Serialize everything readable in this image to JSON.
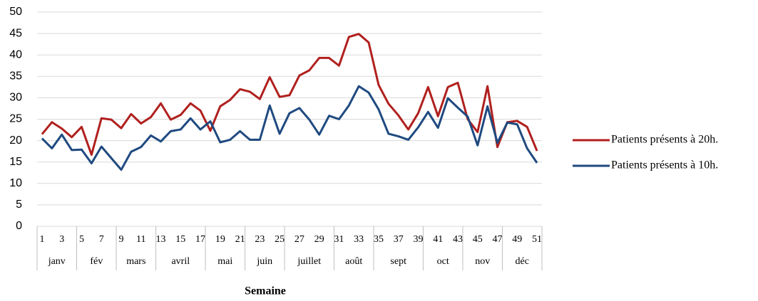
{
  "chart_data": {
    "type": "line",
    "categories": [
      "1",
      null,
      "3",
      null,
      "5",
      null,
      "7",
      null,
      "9",
      null,
      "11",
      null,
      "13",
      null,
      "15",
      null,
      "17",
      null,
      "19",
      null,
      "21",
      null,
      "23",
      null,
      "25",
      null,
      "27",
      null,
      "29",
      null,
      "31",
      null,
      "33",
      null,
      "35",
      null,
      "37",
      null,
      "39",
      null,
      "41",
      null,
      "43",
      null,
      "45",
      null,
      "47",
      null,
      "49",
      null,
      "51"
    ],
    "groups": [
      {
        "label": "janv",
        "range": [
          1,
          4
        ]
      },
      {
        "label": "fév",
        "range": [
          5,
          8
        ]
      },
      {
        "label": "mars",
        "range": [
          9,
          12
        ]
      },
      {
        "label": "avril",
        "range": [
          13,
          17
        ]
      },
      {
        "label": "mai",
        "range": [
          18,
          21
        ]
      },
      {
        "label": "juin",
        "range": [
          22,
          25
        ]
      },
      {
        "label": "juillet",
        "range": [
          26,
          30
        ]
      },
      {
        "label": "août",
        "range": [
          31,
          34
        ]
      },
      {
        "label": "sept",
        "range": [
          35,
          39
        ]
      },
      {
        "label": "oct",
        "range": [
          40,
          43
        ]
      },
      {
        "label": "nov",
        "range": [
          44,
          47
        ]
      },
      {
        "label": "déc",
        "range": [
          48,
          51
        ]
      }
    ],
    "series": [
      {
        "name": "Patients présents à 20h.",
        "color": "#b0201e",
        "values": [
          21.5,
          24.3,
          22.8,
          20.8,
          23.2,
          16.7,
          25.2,
          24.9,
          22.9,
          26.2,
          24.0,
          25.5,
          28.7,
          24.9,
          26.0,
          28.7,
          27.0,
          22.3,
          28.0,
          29.5,
          32.0,
          31.4,
          29.7,
          34.8,
          30.2,
          30.6,
          35.2,
          36.4,
          39.3,
          39.3,
          37.5,
          44.2,
          44.9,
          42.9,
          33.0,
          28.6,
          25.9,
          22.6,
          26.4,
          32.5,
          25.7,
          32.5,
          33.5,
          25.0,
          22.0,
          32.7,
          18.5,
          24.3,
          24.6,
          23.2,
          17.6
        ]
      },
      {
        "name": "Patients présents à 10h.",
        "color": "#1f4a80",
        "values": [
          20.5,
          18.2,
          21.4,
          17.8,
          17.9,
          14.7,
          18.6,
          15.9,
          13.2,
          17.4,
          18.5,
          21.2,
          19.8,
          22.2,
          22.6,
          25.2,
          22.6,
          24.5,
          19.6,
          20.2,
          22.2,
          20.2,
          20.2,
          28.2,
          21.6,
          26.4,
          27.6,
          24.9,
          21.4,
          25.8,
          25.0,
          28.2,
          32.7,
          31.2,
          27.3,
          21.6,
          21.0,
          20.2,
          23.1,
          26.7,
          23.0,
          29.9,
          27.7,
          25.6,
          18.9,
          28.0,
          19.5,
          24.2,
          23.8,
          18.2,
          14.8
        ]
      }
    ],
    "ylim": [
      0,
      50
    ],
    "yticks": [
      0,
      5,
      10,
      15,
      20,
      25,
      30,
      35,
      40,
      45,
      50
    ],
    "grid": true,
    "x_label": "Semaine",
    "legend": "right"
  }
}
